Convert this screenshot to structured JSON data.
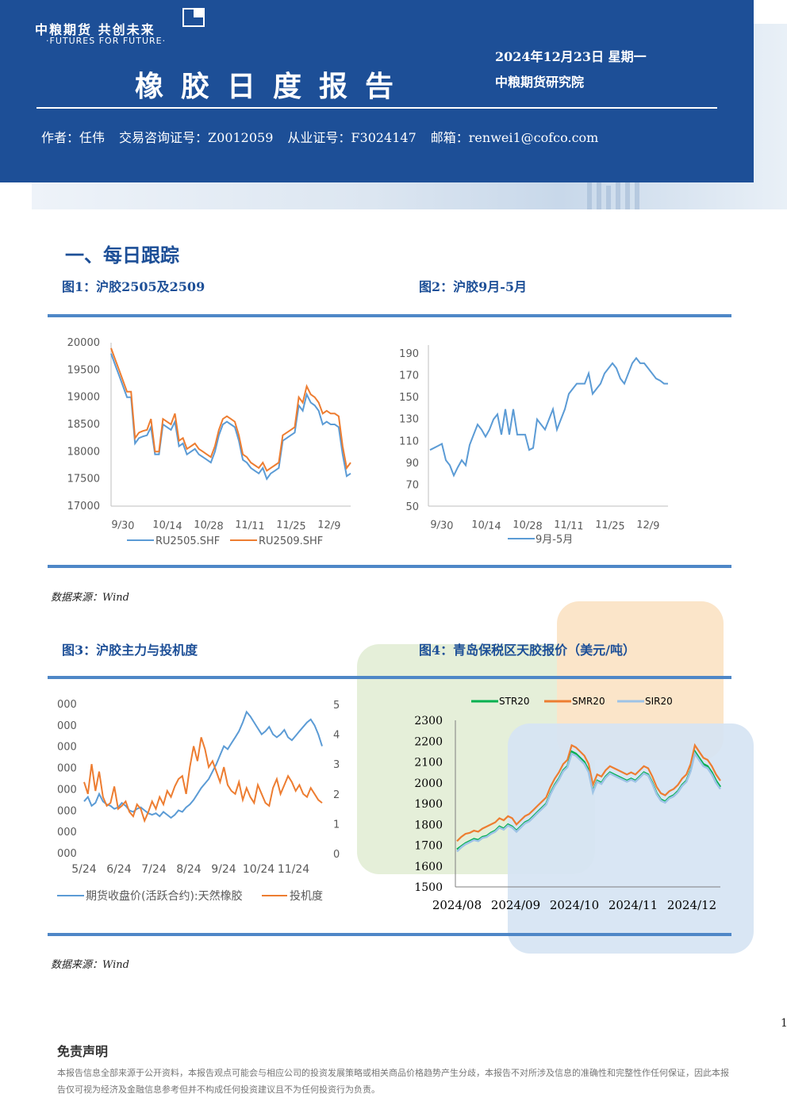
{
  "header": {
    "logo_cn": "中粮期货 共创未来",
    "logo_en": "·FUTURES FOR FUTURE·",
    "title": "橡胶日度报告",
    "date": "2024年12月23日 星期一",
    "institute": "中粮期货研究院",
    "authors": [
      "作者：任伟",
      "交易咨询证号：Z0012059",
      "从业证号：F3024147",
      "邮箱：renwei1@cofco.com"
    ]
  },
  "section_title": "一、每日跟踪",
  "captions": {
    "fig1": "图1：沪胶2505及2509",
    "fig2": "图2：沪胶9月-5月",
    "fig3": "图3：沪胶主力与投机度",
    "fig4": "图4：青岛保税区天胶报价（美元/吨）"
  },
  "source_note": "数据来源：Wind",
  "page_number": "1",
  "disclaimer": {
    "title": "免责声明",
    "text": "本报告信息全部来源于公开资料，本报告观点可能会与相应公司的投资发展策略或相关商品价格趋势产生分歧，本报告不对所涉及信息的准确性和完整性作任何保证，因此本报告仅可视为经济及金融信息参考但并不构成任何投资建议且不为任何投资行为负责。"
  },
  "chart_data": [
    {
      "type": "line",
      "ylim": [
        17000,
        20000
      ],
      "yticks": [
        "20000",
        "19500",
        "19000",
        "18500",
        "18000",
        "17500",
        "17000"
      ],
      "xticks": [
        "9/30",
        "10/14",
        "10/28",
        "11/11",
        "11/25",
        "12/9"
      ],
      "series": [
        {
          "name": "RU2505.SHF",
          "color": "#5b9bd5",
          "values": [
            19800,
            19600,
            19400,
            19200,
            19000,
            19000,
            18150,
            18250,
            18280,
            18300,
            18450,
            17950,
            17950,
            18500,
            18450,
            18400,
            18550,
            18100,
            18150,
            17950,
            18000,
            18050,
            17950,
            17900,
            17850,
            17800,
            18000,
            18300,
            18500,
            18550,
            18500,
            18450,
            18200,
            17850,
            17800,
            17700,
            17650,
            17600,
            17700,
            17500,
            17600,
            17650,
            17700,
            18200,
            18250,
            18300,
            18350,
            18850,
            18750,
            19050,
            18900,
            18850,
            18750,
            18500,
            18550,
            18500,
            18500,
            18450,
            17950,
            17550,
            17600
          ]
        },
        {
          "name": "RU2509.SHF",
          "color": "#ed7d31",
          "values": [
            19900,
            19700,
            19500,
            19300,
            19100,
            19100,
            18250,
            18350,
            18380,
            18400,
            18600,
            18000,
            18000,
            18600,
            18550,
            18500,
            18700,
            18200,
            18250,
            18050,
            18100,
            18150,
            18050,
            18000,
            17950,
            17900,
            18100,
            18400,
            18600,
            18650,
            18600,
            18550,
            18300,
            17950,
            17900,
            17800,
            17750,
            17700,
            17800,
            17650,
            17700,
            17750,
            17800,
            18300,
            18350,
            18400,
            18450,
            19000,
            18900,
            19200,
            19050,
            19000,
            18900,
            18700,
            18750,
            18700,
            18700,
            18650,
            18100,
            17700,
            17800
          ]
        }
      ]
    },
    {
      "type": "line",
      "ylim": [
        50,
        200
      ],
      "yticks": [
        "190",
        "170",
        "150",
        "130",
        "110",
        "90",
        "70",
        "50"
      ],
      "xticks": [
        "9/30",
        "10/14",
        "10/28",
        "11/11",
        "11/25",
        "12/9"
      ],
      "series": [
        {
          "name": "9月-5月",
          "color": "#5b9bd5",
          "values": [
            105,
            107,
            109,
            111,
            95,
            90,
            80,
            88,
            95,
            90,
            110,
            120,
            130,
            125,
            118,
            125,
            135,
            140,
            120,
            145,
            120,
            145,
            120,
            120,
            120,
            105,
            107,
            135,
            130,
            125,
            135,
            145,
            125,
            135,
            145,
            160,
            165,
            170,
            170,
            170,
            180,
            160,
            165,
            170,
            180,
            185,
            190,
            185,
            175,
            170,
            180,
            190,
            195,
            190,
            190,
            185,
            180,
            175,
            173,
            170,
            170
          ]
        }
      ]
    },
    {
      "type": "line",
      "xticks": [
        "5/24",
        "6/24",
        "7/24",
        "8/24",
        "9/24",
        "10/24",
        "11/24"
      ],
      "yticks_right": [
        "5",
        "4",
        "3",
        "2",
        "1",
        "0"
      ],
      "series": [
        {
          "name": "期货收盘价(活跃合约):天然橡胶",
          "color": "#5b9bd5",
          "values": [
            0.35,
            0.38,
            0.32,
            0.34,
            0.4,
            0.35,
            0.33,
            0.32,
            0.3,
            0.31,
            0.34,
            0.32,
            0.29,
            0.28,
            0.3,
            0.31,
            0.29,
            0.27,
            0.26,
            0.27,
            0.25,
            0.28,
            0.26,
            0.24,
            0.26,
            0.29,
            0.28,
            0.31,
            0.33,
            0.36,
            0.4,
            0.44,
            0.47,
            0.5,
            0.55,
            0.6,
            0.66,
            0.72,
            0.7,
            0.74,
            0.78,
            0.82,
            0.88,
            0.95,
            0.92,
            0.88,
            0.84,
            0.8,
            0.82,
            0.85,
            0.8,
            0.78,
            0.8,
            0.83,
            0.78,
            0.76,
            0.79,
            0.82,
            0.85,
            0.88,
            0.9,
            0.86,
            0.8,
            0.72
          ]
        },
        {
          "name": "投机度",
          "color": "#ed7d31",
          "values": [
            0.48,
            0.4,
            0.6,
            0.42,
            0.55,
            0.38,
            0.32,
            0.34,
            0.45,
            0.3,
            0.32,
            0.35,
            0.28,
            0.25,
            0.33,
            0.3,
            0.22,
            0.28,
            0.35,
            0.3,
            0.38,
            0.33,
            0.42,
            0.38,
            0.45,
            0.5,
            0.52,
            0.4,
            0.58,
            0.72,
            0.62,
            0.78,
            0.7,
            0.58,
            0.62,
            0.55,
            0.48,
            0.58,
            0.46,
            0.42,
            0.4,
            0.48,
            0.36,
            0.44,
            0.38,
            0.34,
            0.46,
            0.4,
            0.34,
            0.32,
            0.44,
            0.5,
            0.4,
            0.46,
            0.52,
            0.48,
            0.42,
            0.46,
            0.4,
            0.38,
            0.44,
            0.4,
            0.36,
            0.34
          ]
        }
      ]
    },
    {
      "type": "line",
      "ylim": [
        1500,
        2300
      ],
      "yticks": [
        "2300",
        "2200",
        "2100",
        "2000",
        "1900",
        "1800",
        "1700",
        "1600",
        "1500"
      ],
      "xticks": [
        "2024/08",
        "2024/09",
        "2024/10",
        "2024/11",
        "2024/12"
      ],
      "series": [
        {
          "name": "STR20",
          "color": "#00b050",
          "values": [
            1680,
            1695,
            1710,
            1720,
            1730,
            1725,
            1740,
            1745,
            1760,
            1770,
            1790,
            1780,
            1800,
            1790,
            1770,
            1790,
            1810,
            1820,
            1840,
            1860,
            1880,
            1900,
            1950,
            1990,
            2020,
            2060,
            2080,
            2150,
            2140,
            2120,
            2100,
            2060,
            1960,
            2010,
            2000,
            2030,
            2050,
            2040,
            2030,
            2020,
            2010,
            2020,
            2010,
            2030,
            2050,
            2040,
            2000,
            1950,
            1920,
            1910,
            1930,
            1940,
            1960,
            1990,
            2010,
            2060,
            2150,
            2120,
            2090,
            2080,
            2050,
            2010,
            1980
          ]
        },
        {
          "name": "SMR20",
          "color": "#ed7d31",
          "values": [
            1720,
            1740,
            1755,
            1760,
            1770,
            1765,
            1780,
            1790,
            1800,
            1810,
            1830,
            1820,
            1840,
            1830,
            1800,
            1820,
            1840,
            1850,
            1870,
            1890,
            1910,
            1930,
            1980,
            2020,
            2050,
            2090,
            2110,
            2180,
            2170,
            2150,
            2130,
            2090,
            1990,
            2040,
            2030,
            2060,
            2080,
            2070,
            2060,
            2050,
            2040,
            2050,
            2040,
            2060,
            2080,
            2070,
            2030,
            1980,
            1950,
            1940,
            1960,
            1970,
            1990,
            2020,
            2040,
            2090,
            2180,
            2150,
            2120,
            2110,
            2080,
            2040,
            2010
          ]
        },
        {
          "name": "SIR20",
          "color": "#9dc3e6",
          "values": [
            1670,
            1690,
            1705,
            1715,
            1725,
            1720,
            1735,
            1740,
            1755,
            1765,
            1785,
            1775,
            1795,
            1785,
            1765,
            1785,
            1805,
            1815,
            1835,
            1855,
            1875,
            1895,
            1945,
            1985,
            2015,
            2055,
            2075,
            2140,
            2130,
            2110,
            2090,
            2050,
            1955,
            2005,
            1995,
            2025,
            2045,
            2035,
            2025,
            2015,
            2005,
            2015,
            2005,
            2025,
            2045,
            2035,
            1995,
            1945,
            1915,
            1905,
            1925,
            1935,
            1955,
            1985,
            2005,
            2055,
            2140,
            2110,
            2080,
            2070,
            2040,
            2000,
            1970
          ]
        }
      ]
    }
  ]
}
